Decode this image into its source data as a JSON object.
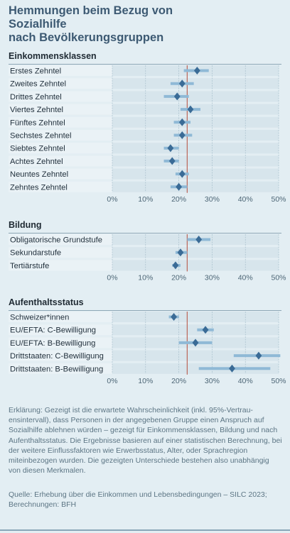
{
  "title_line1": "Hemmungen beim Bezug von Sozialhilfe",
  "title_line2": "nach Bevölkerungsgruppen",
  "colors": {
    "background": "#e3eef3",
    "plot_background": "#d7e5ec",
    "grid": "#9fb8c6",
    "estimate_marker": "#3a6b96",
    "ci_bar": "#8fb9d6",
    "reference_line": "#b54a3a"
  },
  "chart_data": [
    {
      "type": "dot-interval",
      "title": "Einkommensklassen",
      "xlim": [
        0,
        50
      ],
      "xticks": [
        "0%",
        "10%",
        "20%",
        "30%",
        "40%",
        "50%"
      ],
      "reference_value": 22.5,
      "categories": [
        "Erstes Zehntel",
        "Zweites Zehntel",
        "Drittes Zehntel",
        "Viertes Zehntel",
        "Fünftes Zehntel",
        "Sechstes Zehntel",
        "Siebtes Zehntel",
        "Achtes Zehntel",
        "Neuntes Zehntel",
        "Zehntes Zehntel"
      ],
      "estimate": [
        25.5,
        21.0,
        19.5,
        23.5,
        21.0,
        21.0,
        17.5,
        18.0,
        21.0,
        20.0
      ],
      "ci_low": [
        21.5,
        17.5,
        15.5,
        20.5,
        18.5,
        18.5,
        15.5,
        15.5,
        19.0,
        17.5
      ],
      "ci_high": [
        29.0,
        24.5,
        23.0,
        26.5,
        23.5,
        24.0,
        20.0,
        20.0,
        23.0,
        22.5
      ]
    },
    {
      "type": "dot-interval",
      "title": "Bildung",
      "xlim": [
        0,
        50
      ],
      "xticks": [
        "0%",
        "10%",
        "20%",
        "30%",
        "40%",
        "50%"
      ],
      "reference_value": 22.5,
      "categories": [
        "Obligatorische Grundstufe",
        "Sekundarstufe",
        "Tertiärstufe"
      ],
      "estimate": [
        26.0,
        20.5,
        19.0
      ],
      "ci_low": [
        22.5,
        19.0,
        18.0
      ],
      "ci_high": [
        29.5,
        22.5,
        20.5
      ]
    },
    {
      "type": "dot-interval",
      "title": "Aufenthaltsstatus",
      "xlim": [
        0,
        50
      ],
      "xticks": [
        "0%",
        "10%",
        "20%",
        "30%",
        "40%",
        "50%"
      ],
      "reference_value": 22.5,
      "categories": [
        "Schweizer*innen",
        "EU/EFTA: C-Bewilligung",
        "EU/EFTA: B-Bewilligung",
        "Drittstaaten: C-Bewilligung",
        "Drittstaaten: B-Bewilligung"
      ],
      "estimate": [
        18.5,
        28.0,
        25.0,
        44.0,
        36.0
      ],
      "ci_low": [
        17.0,
        25.5,
        20.0,
        36.5,
        26.0
      ],
      "ci_high": [
        20.0,
        30.5,
        30.0,
        51.5,
        47.5
      ]
    }
  ],
  "note": "Erklärung: Gezeigt ist die erwartete Wahrscheinlichkeit (inkl. 95%-Vertrau­ensintervall), dass Personen in der angegebenen Gruppe einen Anspruch auf Sozialhilfe ablehnen würden – gezeigt für Einkommensklassen, Bildung und nach Aufenthaltsstatus. Die Ergebnisse basieren auf einer statistischen Berechnung, bei der weitere Einflussfaktoren wie Erwerbsstatus, Alter, oder Sprachregion miteinbezogen wurden. Die gezeigten Unterschiede bestehen also unabhängig von diesen Merkmalen.",
  "source": "Quelle: Erhebung über die Einkommen und Lebensbedingungen – SILC 2023; Berechnungen: BFH"
}
